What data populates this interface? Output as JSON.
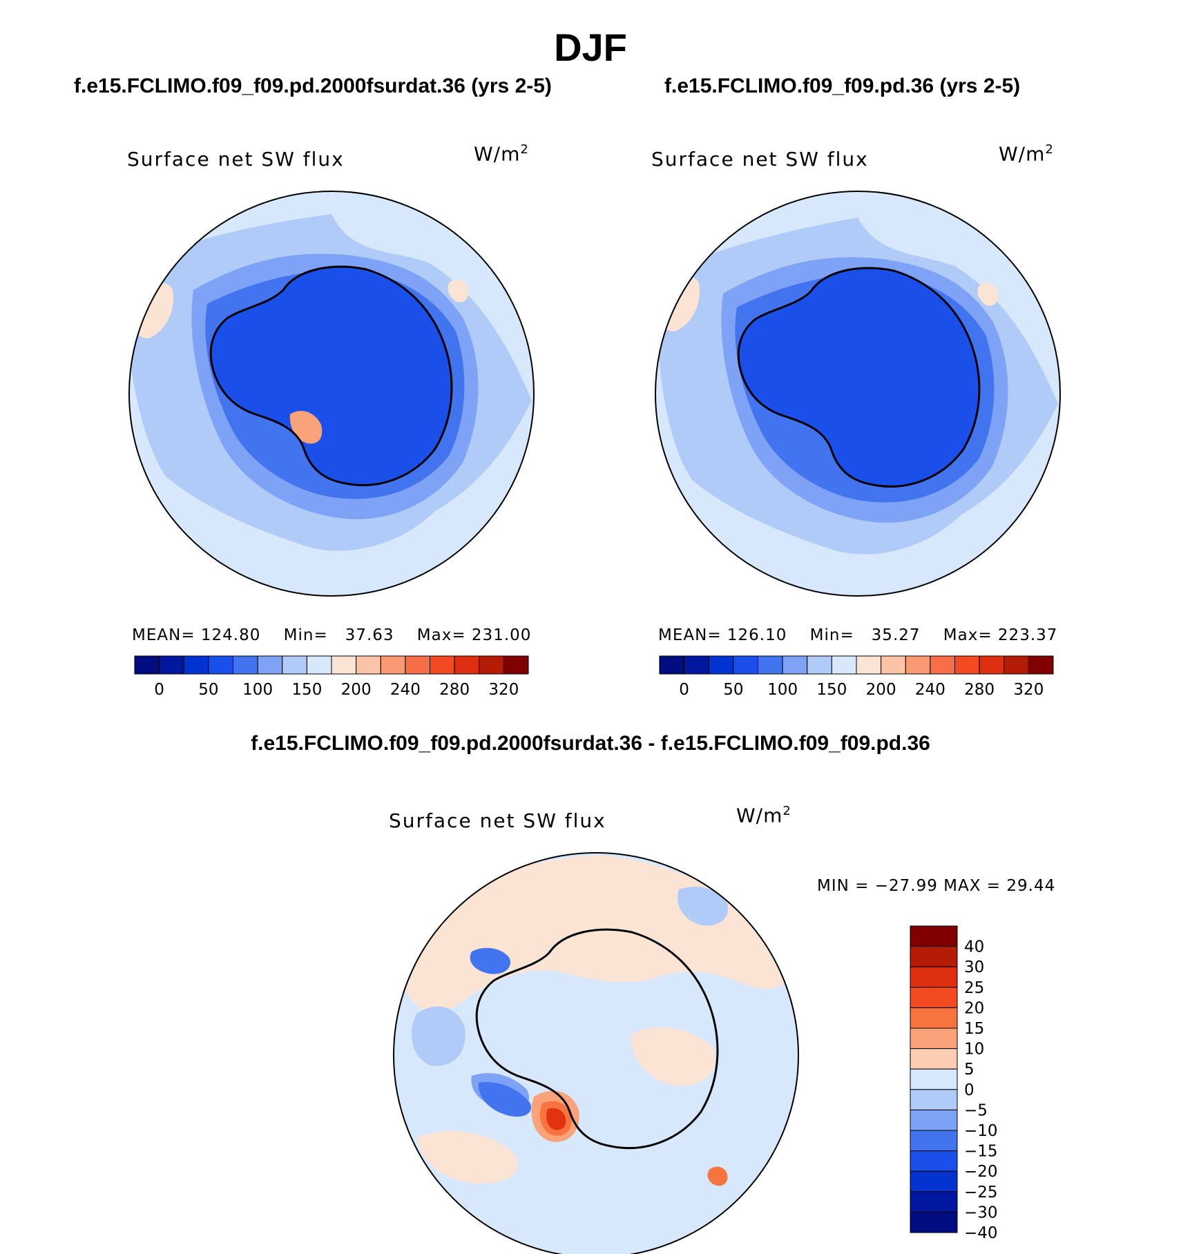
{
  "figure": {
    "title": "DJF",
    "panels": [
      {
        "case": "f.e15.FCLIMO.f09_f09.pd.2000fsurdat.36 (yrs 2-5)",
        "variable": "Surface net SW flux",
        "units_base": "W/m",
        "units_exp": "2",
        "stats": {
          "mean_label": "MEAN=",
          "mean": "124.80",
          "min_label": "Min=",
          "min": "37.63",
          "max_label": "Max=",
          "max": "231.00"
        }
      },
      {
        "case": "f.e15.FCLIMO.f09_f09.pd.36 (yrs 2-5)",
        "variable": "Surface net SW flux",
        "units_base": "W/m",
        "units_exp": "2",
        "stats": {
          "mean_label": "MEAN=",
          "mean": "126.10",
          "min_label": "Min=",
          "min": "35.27",
          "max_label": "Max=",
          "max": "223.37"
        }
      }
    ],
    "difference": {
      "title": "f.e15.FCLIMO.f09_f09.pd.2000fsurdat.36 - f.e15.FCLIMO.f09_f09.pd.36",
      "variable": "Surface net SW flux",
      "units_base": "W/m",
      "units_exp": "2",
      "minmax": "MIN = −27.99 MAX =  29.44"
    }
  },
  "colorbar_main": {
    "colors": [
      "#000c80",
      "#0017a0",
      "#0033d0",
      "#1a4fea",
      "#4374f0",
      "#7ea2f6",
      "#b1cbf8",
      "#d8e8fc",
      "#fce4d4",
      "#fbc4a8",
      "#f99a74",
      "#f76f48",
      "#f34a22",
      "#de3010",
      "#b51c06",
      "#800000"
    ],
    "tick_labels": [
      "0",
      "50",
      "100",
      "150",
      "200",
      "240",
      "280",
      "320"
    ]
  },
  "colorbar_diff": {
    "colors": [
      "#800000",
      "#b51c06",
      "#de3010",
      "#f34a22",
      "#f7733f",
      "#faa27a",
      "#fccdb3",
      "#d8e8fc",
      "#b1cbf8",
      "#7ea2f6",
      "#4374f0",
      "#1a4fea",
      "#0033d0",
      "#0017a0",
      "#000c80"
    ],
    "tick_labels": [
      "40",
      "30",
      "25",
      "20",
      "15",
      "10",
      "5",
      "0",
      "−5",
      "−10",
      "−15",
      "−20",
      "−25",
      "−30",
      "−40"
    ]
  },
  "map_palette": {
    "outline": "#000000",
    "ocean_main": "#d8e8fc",
    "light_blue": "#b1cbf8",
    "mid_blue": "#7ea2f6",
    "blue": "#4374f0",
    "dark_blue": "#1a4fea",
    "deep_blue": "#0033d0",
    "peach": "#fce4d4",
    "salmon": "#faa27a",
    "orange": "#f7733f",
    "red": "#e3320e"
  }
}
